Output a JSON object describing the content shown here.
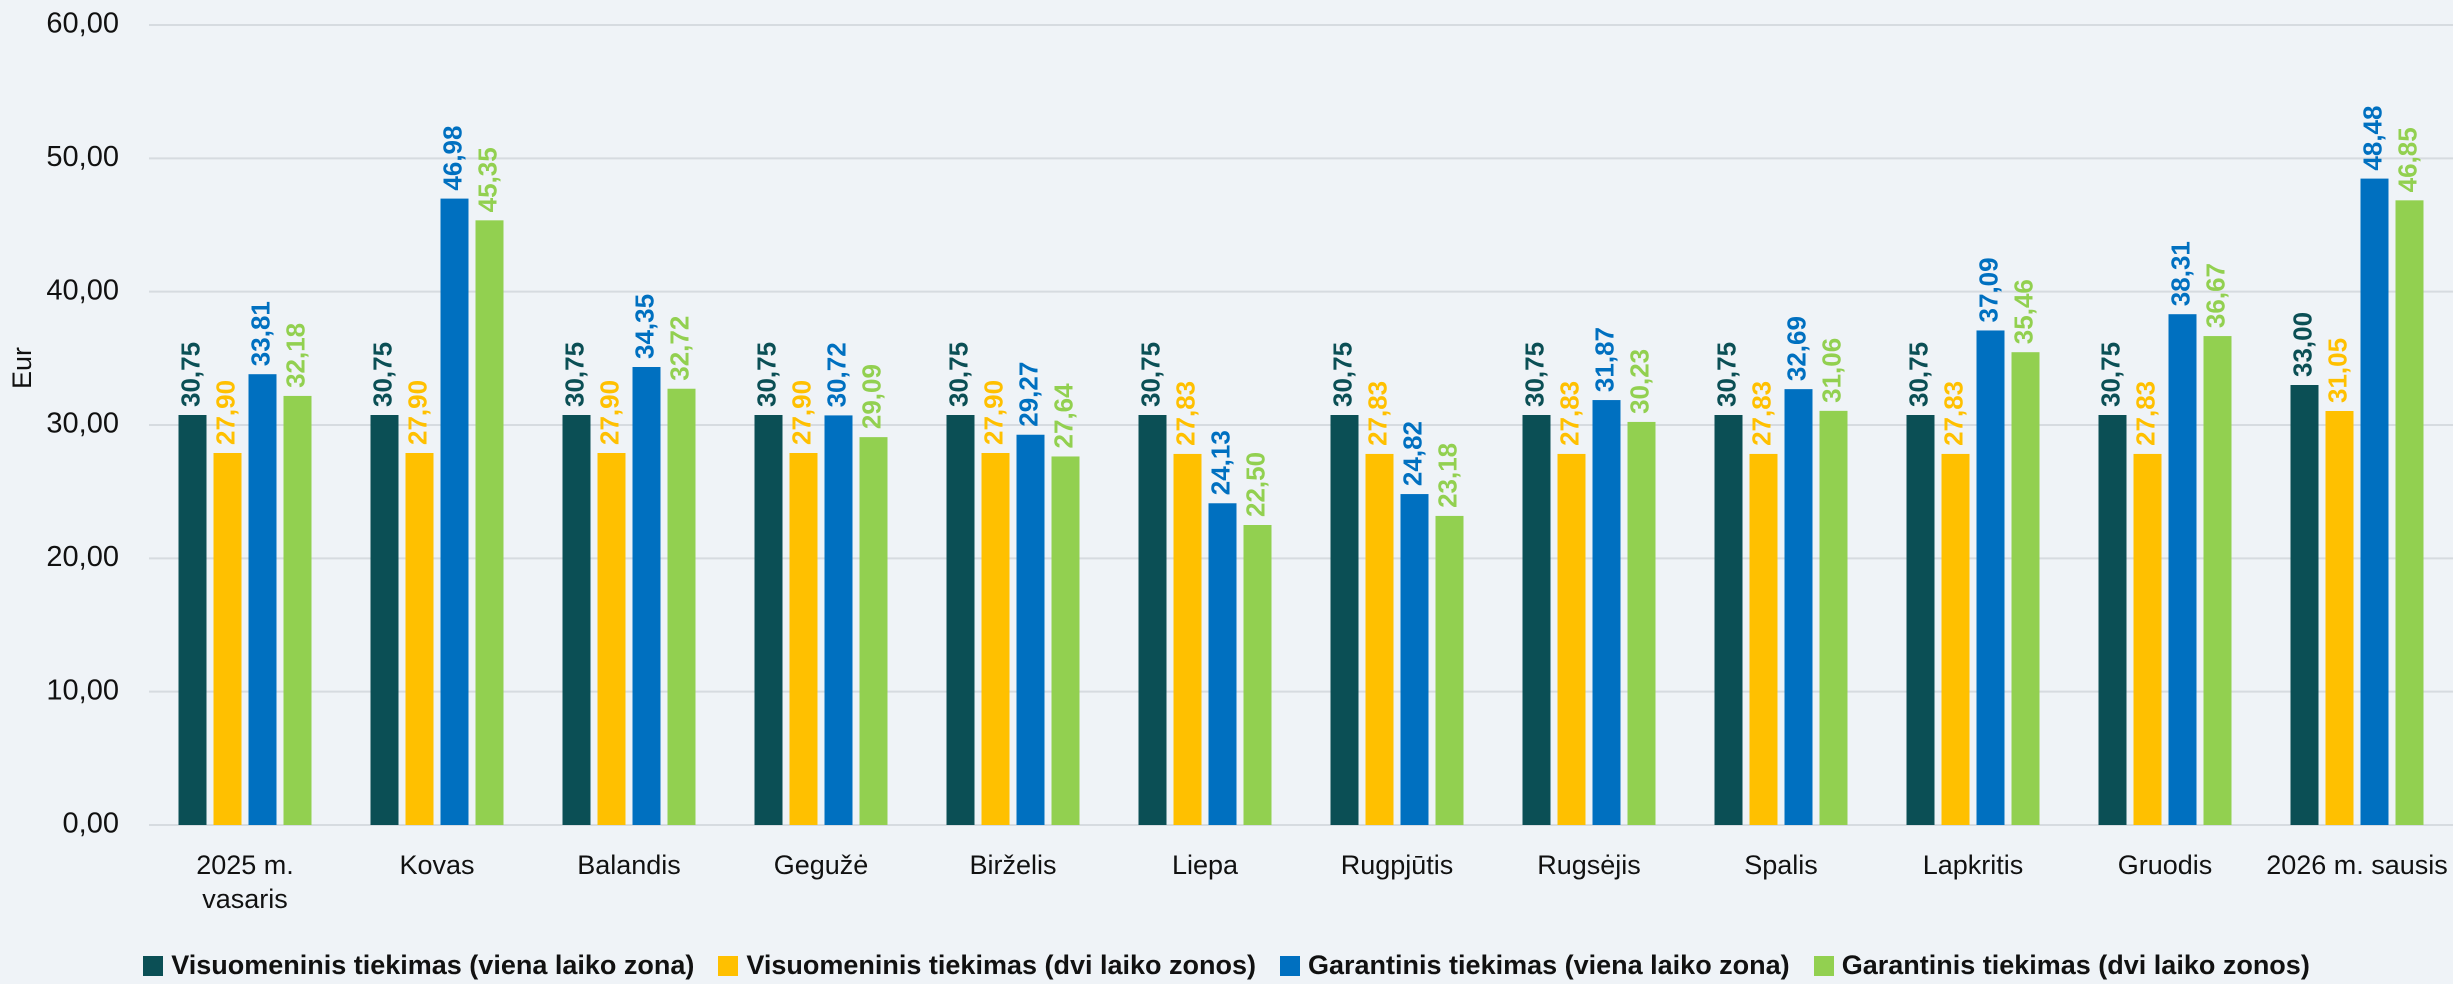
{
  "chart_data": {
    "type": "bar",
    "y_label": "Eur",
    "categories": [
      "2025 m.\nvasaris",
      "Kovas",
      "Balandis",
      "Gegužė",
      "Birželis",
      "Liepa",
      "Rugpjūtis",
      "Rugsėjis",
      "Spalis",
      "Lapkritis",
      "Gruodis",
      "2026 m. sausis"
    ],
    "ylim": [
      0,
      60
    ],
    "yticks": [
      {
        "value": 0,
        "label": "0,00"
      },
      {
        "value": 10,
        "label": "10,00"
      },
      {
        "value": 20,
        "label": "20,00"
      },
      {
        "value": 30,
        "label": "30,00"
      },
      {
        "value": 40,
        "label": "40,00"
      },
      {
        "value": 50,
        "label": "50,00"
      },
      {
        "value": 60,
        "label": "60,00"
      }
    ],
    "grid": true,
    "legend": "bottom",
    "series": [
      {
        "name": "Visuomeninis tiekimas (viena laiko zona)",
        "color": "#0b4f55",
        "values": [
          30.75,
          30.75,
          30.75,
          30.75,
          30.75,
          30.75,
          30.75,
          30.75,
          30.75,
          30.75,
          30.75,
          33.0
        ],
        "value_labels": [
          "30,75",
          "30,75",
          "30,75",
          "30,75",
          "30,75",
          "30,75",
          "30,75",
          "30,75",
          "30,75",
          "30,75",
          "30,75",
          "33,00"
        ]
      },
      {
        "name": "Visuomeninis tiekimas (dvi laiko zonos)",
        "color": "#ffc000",
        "values": [
          27.9,
          27.9,
          27.9,
          27.9,
          27.9,
          27.83,
          27.83,
          27.83,
          27.83,
          27.83,
          27.83,
          31.05
        ],
        "value_labels": [
          "27,90",
          "27,90",
          "27,90",
          "27,90",
          "27,90",
          "27,83",
          "27,83",
          "27,83",
          "27,83",
          "27,83",
          "27,83",
          "31,05"
        ]
      },
      {
        "name": "Garantinis tiekimas (viena laiko zona)",
        "color": "#0070c0",
        "values": [
          33.81,
          46.98,
          34.35,
          30.72,
          29.27,
          24.13,
          24.82,
          31.87,
          32.69,
          37.09,
          38.31,
          48.48
        ],
        "value_labels": [
          "33,81",
          "46,98",
          "34,35",
          "30,72",
          "29,27",
          "24,13",
          "24,82",
          "31,87",
          "32,69",
          "37,09",
          "38,31",
          "48,48"
        ]
      },
      {
        "name": "Garantinis tiekimas (dvi laiko zonos)",
        "color": "#92d050",
        "values": [
          32.18,
          45.35,
          32.72,
          29.09,
          27.64,
          22.5,
          23.18,
          30.23,
          31.06,
          35.46,
          36.67,
          46.85
        ],
        "value_labels": [
          "32,18",
          "45,35",
          "32,72",
          "29,09",
          "27,64",
          "22,50",
          "23,18",
          "30,23",
          "31,06",
          "35,46",
          "36,67",
          "46,85"
        ]
      }
    ]
  }
}
